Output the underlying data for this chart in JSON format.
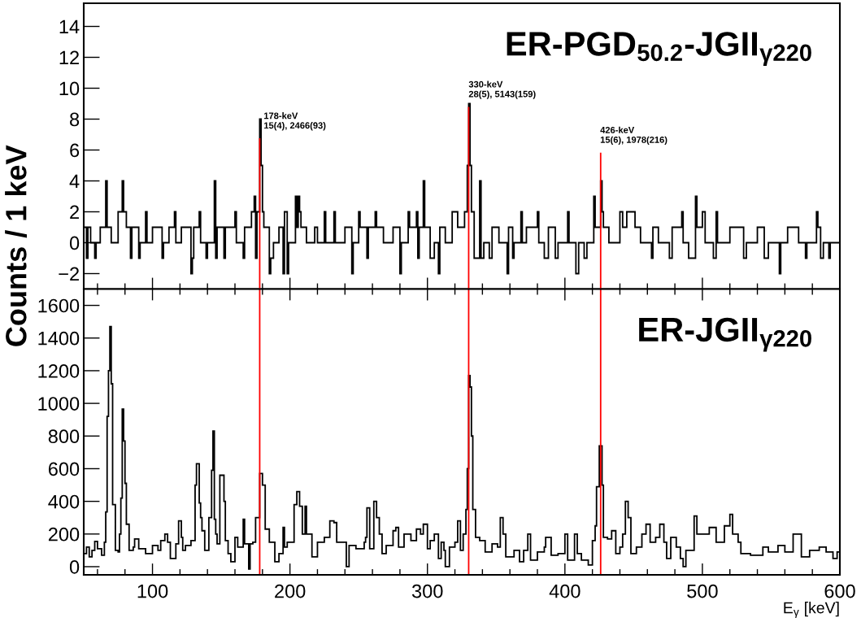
{
  "chart_data": [
    {
      "type": "histogram",
      "title": "ER-PGD$_{50.2}$-JGII$_{γ220}$",
      "ylabel": "Counts / 1 keV",
      "color": "#000000",
      "xlim": [
        50,
        600
      ],
      "xticks": [
        100,
        200,
        300,
        400,
        500,
        600
      ],
      "ylim": [
        -3,
        15.5
      ],
      "yticks": [
        {
          "value": -2,
          "label": "−2"
        },
        0,
        2,
        4,
        6,
        8,
        10,
        12,
        14
      ],
      "tick_labels": "y",
      "bins": [
        50,
        52,
        53,
        55,
        58,
        59,
        62,
        66,
        67,
        70,
        75,
        78,
        79,
        81,
        84,
        85,
        90,
        91,
        95,
        96,
        100,
        107,
        108,
        112,
        116,
        117,
        121,
        128,
        129,
        130,
        134,
        135,
        139,
        140,
        145,
        146,
        147,
        152,
        153,
        160,
        161,
        166,
        167,
        172,
        174,
        175,
        176,
        178,
        179,
        180,
        181,
        185,
        186,
        188,
        192,
        195,
        196,
        198,
        199,
        204,
        205,
        206,
        207,
        208,
        212,
        218,
        220,
        225,
        226,
        232,
        233,
        240,
        245,
        246,
        250,
        251,
        256,
        257,
        262,
        263,
        268,
        275,
        280,
        281,
        286,
        287,
        292,
        293,
        294,
        297,
        298,
        302,
        305,
        308,
        309,
        313,
        318,
        322,
        327,
        329,
        330,
        331,
        332,
        334,
        338,
        339,
        341,
        345,
        347,
        352,
        358,
        359,
        362,
        363,
        368,
        369,
        372,
        380,
        381,
        385,
        388,
        393,
        395,
        402,
        403,
        408,
        410,
        414,
        416,
        421,
        422,
        426,
        427,
        428,
        432,
        440,
        442,
        445,
        451,
        455,
        463,
        464,
        468,
        476,
        478,
        485,
        486,
        490,
        495,
        496,
        500,
        502,
        508,
        510,
        511,
        520,
        530,
        532,
        540,
        545,
        548,
        556,
        557,
        562,
        570,
        575,
        576,
        583,
        584,
        586,
        588,
        592,
        593,
        600
      ],
      "values": [
        1,
        -1,
        1,
        0,
        -1,
        0,
        1,
        4,
        1,
        0,
        2,
        4,
        2,
        1,
        -1,
        1,
        -1,
        0,
        2,
        0,
        1,
        -1,
        0,
        1,
        2,
        0,
        1,
        -2,
        -1,
        1,
        2,
        0,
        -1,
        0,
        4,
        -1,
        1,
        -1,
        1,
        2,
        0,
        -1,
        1,
        2,
        3,
        -1,
        2,
        8,
        5,
        2,
        1,
        -2,
        -1,
        0,
        1,
        -2,
        2,
        -2,
        0,
        3,
        1,
        3,
        2,
        1,
        0,
        1,
        0,
        2,
        0,
        2,
        0,
        1,
        -2,
        0,
        2,
        1,
        -1,
        1,
        2,
        1,
        0,
        1,
        -2,
        0,
        2,
        1,
        2,
        -1,
        1,
        4,
        1,
        -1,
        0,
        -2,
        1,
        0,
        2,
        1,
        2,
        5,
        9,
        5,
        2,
        -1,
        4,
        -1,
        0,
        -1,
        1,
        0,
        -2,
        1,
        -1,
        0,
        2,
        0,
        1,
        2,
        0,
        -1,
        1,
        -1,
        0,
        2,
        0,
        -2,
        0,
        -1,
        0,
        3,
        1,
        4,
        2,
        1,
        0,
        2,
        1,
        2,
        1,
        0,
        -1,
        1,
        0,
        -1,
        1,
        2,
        0,
        -1,
        3,
        1,
        2,
        0,
        -1,
        2,
        0,
        1,
        -1,
        0,
        1,
        -1,
        0,
        -2,
        0,
        1,
        0,
        -1,
        0,
        2,
        1,
        -1,
        0,
        -1,
        0
      ],
      "annotations": [
        "178-keV\n15(4), 2466(93)",
        "330-keV\n28(5), 5143(159)",
        "426-keV\n15(6), 1978(216)"
      ]
    },
    {
      "type": "histogram",
      "title": "ER-JGII$_{γ220}$",
      "xlabel": "E$_{γ}$ [keV]",
      "color": "#000000",
      "xlim": [
        50,
        600
      ],
      "xticks": [
        100,
        200,
        300,
        400,
        500,
        600
      ],
      "ylim": [
        -50,
        1700
      ],
      "yticks": [
        0,
        200,
        400,
        600,
        800,
        1000,
        1200,
        1400,
        1600
      ],
      "bins": [
        50,
        52,
        54,
        56,
        58,
        60,
        63,
        65,
        66,
        67,
        68,
        69,
        70,
        71,
        73,
        75,
        76,
        77,
        78,
        79,
        80,
        81,
        83,
        86,
        87,
        90,
        95,
        100,
        104,
        106,
        109,
        111,
        113,
        117,
        119,
        121,
        122,
        124,
        128,
        131,
        132,
        134,
        135,
        136,
        138,
        141,
        143,
        144,
        145,
        146,
        147,
        149,
        152,
        153,
        155,
        157,
        160,
        162,
        166,
        167,
        170,
        171,
        173,
        175,
        178,
        180,
        182,
        185,
        189,
        192,
        195,
        196,
        198,
        203,
        205,
        207,
        209,
        211,
        212,
        216,
        220,
        225,
        229,
        232,
        234,
        238,
        241,
        243,
        248,
        254,
        255,
        256,
        258,
        261,
        263,
        265,
        267,
        270,
        275,
        277,
        279,
        283,
        288,
        292,
        295,
        297,
        300,
        302,
        305,
        308,
        310,
        312,
        313,
        316,
        320,
        322,
        324,
        326,
        328,
        329,
        330,
        331,
        332,
        333,
        335,
        338,
        342,
        347,
        351,
        353,
        355,
        357,
        363,
        367,
        370,
        373,
        375,
        380,
        385,
        386,
        390,
        395,
        400,
        402,
        407,
        409,
        412,
        417,
        420,
        422,
        423,
        425,
        427,
        428,
        431,
        434,
        437,
        440,
        442,
        444,
        446,
        448,
        452,
        456,
        459,
        462,
        466,
        469,
        472,
        474,
        477,
        481,
        484,
        486,
        488,
        494,
        496,
        500,
        505,
        510,
        516,
        520,
        522,
        526,
        528,
        535,
        544,
        548,
        555,
        560,
        566,
        570,
        572,
        578,
        585,
        590,
        595,
        598,
        600
      ],
      "values": [
        80,
        120,
        60,
        100,
        155,
        110,
        70,
        150,
        335,
        920,
        1200,
        1470,
        1120,
        380,
        100,
        90,
        200,
        420,
        965,
        770,
        510,
        260,
        100,
        120,
        170,
        110,
        80,
        130,
        100,
        160,
        200,
        150,
        50,
        140,
        280,
        180,
        100,
        130,
        160,
        500,
        630,
        390,
        300,
        220,
        100,
        300,
        590,
        830,
        290,
        200,
        140,
        560,
        400,
        160,
        80,
        30,
        180,
        120,
        290,
        140,
        -15,
        140,
        150,
        300,
        570,
        500,
        230,
        150,
        30,
        80,
        240,
        120,
        150,
        380,
        460,
        370,
        200,
        370,
        200,
        60,
        150,
        180,
        280,
        270,
        150,
        150,
        0,
        130,
        110,
        150,
        180,
        360,
        110,
        400,
        300,
        200,
        80,
        130,
        220,
        240,
        120,
        200,
        160,
        230,
        200,
        260,
        110,
        160,
        200,
        50,
        150,
        100,
        0,
        120,
        150,
        280,
        100,
        200,
        350,
        600,
        1170,
        1100,
        800,
        350,
        180,
        160,
        90,
        140,
        120,
        300,
        200,
        60,
        100,
        30,
        100,
        200,
        40,
        90,
        120,
        180,
        70,
        80,
        200,
        40,
        200,
        80,
        40,
        10,
        160,
        250,
        490,
        740,
        500,
        180,
        170,
        220,
        80,
        120,
        200,
        400,
        300,
        80,
        120,
        200,
        260,
        150,
        180,
        260,
        150,
        50,
        180,
        120,
        50,
        0,
        100,
        310,
        200,
        200,
        240,
        150,
        250,
        320,
        200,
        150,
        80,
        70,
        120,
        90,
        130,
        90,
        200,
        200,
        60,
        100,
        120,
        90,
        50,
        90
      ],
      "ref_lines": [
        {
          "axis": "x",
          "value": 178,
          "color": "#ff0000"
        },
        {
          "axis": "x",
          "value": 330,
          "color": "#ff0000"
        },
        {
          "axis": "x",
          "value": 426,
          "color": "#ff0000"
        }
      ]
    }
  ]
}
